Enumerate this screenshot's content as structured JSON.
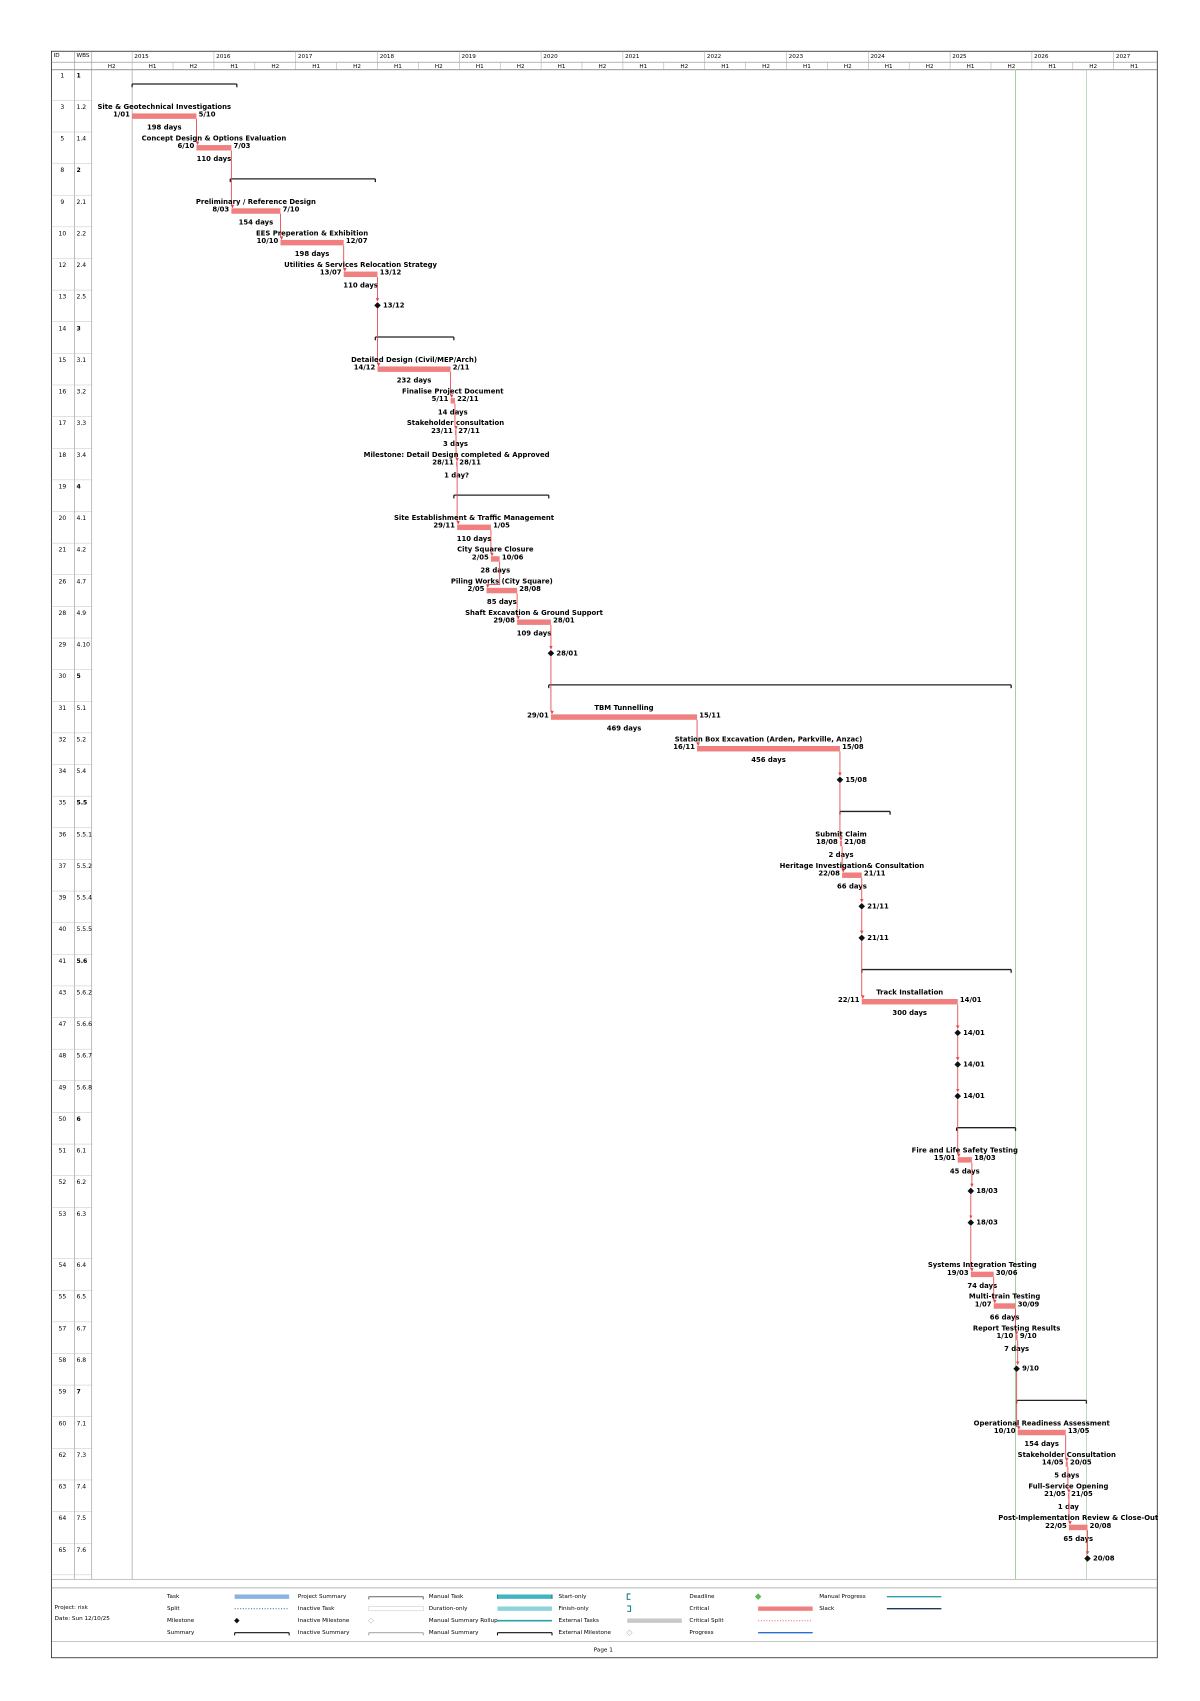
{
  "header": {
    "columns": [
      "ID",
      "WBS"
    ],
    "years": [
      "2015",
      "2016",
      "2017",
      "2018",
      "2019",
      "2020",
      "2021",
      "2022",
      "2023",
      "2024",
      "2025",
      "2026",
      "2027"
    ],
    "halves": [
      "H2",
      "H1",
      "H2",
      "H1",
      "H2",
      "H1",
      "H2",
      "H1",
      "H2",
      "H1",
      "H2",
      "H1",
      "H2",
      "H1",
      "H2",
      "H1",
      "H2",
      "H1",
      "H2",
      "H1",
      "H2",
      "H1",
      "H2",
      "H1",
      "H2",
      "H1"
    ]
  },
  "rows": [
    {
      "id": "1",
      "wbs": "1"
    },
    {
      "id": "3",
      "wbs": "1.2",
      "name": "Site & Geotechnical Investigations",
      "start": "1/01",
      "finish": "5/10",
      "duration": "198 days"
    },
    {
      "id": "5",
      "wbs": "1.4",
      "name": "Concept Design & Options Evaluation",
      "start": "6/10",
      "finish": "7/03",
      "duration": "110 days"
    },
    {
      "id": "8",
      "wbs": "2"
    },
    {
      "id": "9",
      "wbs": "2.1",
      "name": "Preliminary / Reference Design",
      "start": "8/03",
      "finish": "7/10",
      "duration": "154 days"
    },
    {
      "id": "10",
      "wbs": "2.2",
      "name": "EES Preperation & Exhibition",
      "start": "10/10",
      "finish": "12/07",
      "duration": "198 days"
    },
    {
      "id": "12",
      "wbs": "2.4",
      "name": "Utilities & Services Relocation Strategy",
      "start": "13/07",
      "finish": "13/12",
      "duration": "110 days"
    },
    {
      "id": "13",
      "wbs": "2.5",
      "milestone": "13/12"
    },
    {
      "id": "14",
      "wbs": "3"
    },
    {
      "id": "15",
      "wbs": "3.1",
      "name": "Detailed Design (Civil/MEP/Arch)",
      "start": "14/12",
      "finish": "2/11",
      "duration": "232 days"
    },
    {
      "id": "16",
      "wbs": "3.2",
      "name": "Finalise Project Document",
      "start": "5/11",
      "finish": "22/11",
      "duration": "14 days"
    },
    {
      "id": "17",
      "wbs": "3.3",
      "name": "Stakeholder consultation",
      "start": "23/11",
      "finish": "27/11",
      "duration": "3 days"
    },
    {
      "id": "18",
      "wbs": "3.4",
      "name": "Milestone: Detail Design completed & Approved",
      "start": "28/11",
      "finish": "28/11",
      "duration": "1 day?"
    },
    {
      "id": "19",
      "wbs": "4"
    },
    {
      "id": "20",
      "wbs": "4.1",
      "name": "Site Establishment & Traffic Management",
      "start": "29/11",
      "finish": "1/05",
      "duration": "110 days"
    },
    {
      "id": "21",
      "wbs": "4.2",
      "name": "City Square Closure",
      "start": "2/05",
      "finish": "10/06",
      "duration": "28 days"
    },
    {
      "id": "26",
      "wbs": "4.7",
      "name": "Piling Works (City Square)",
      "start": "2/05",
      "finish": "28/08",
      "duration": "85 days"
    },
    {
      "id": "28",
      "wbs": "4.9",
      "name": "Shaft Excavation & Ground Support",
      "start": "29/08",
      "finish": "28/01",
      "duration": "109 days"
    },
    {
      "id": "29",
      "wbs": "4.10",
      "milestone": "28/01"
    },
    {
      "id": "30",
      "wbs": "5"
    },
    {
      "id": "31",
      "wbs": "5.1",
      "name": "TBM Tunnelling",
      "start": "29/01",
      "finish": "15/11",
      "duration": "469 days"
    },
    {
      "id": "32",
      "wbs": "5.2",
      "name": "Station Box Excavation (Arden, Parkville, Anzac)",
      "start": "16/11",
      "finish": "15/08",
      "duration": "456 days"
    },
    {
      "id": "34",
      "wbs": "5.4",
      "milestone": "15/08"
    },
    {
      "id": "35",
      "wbs": "5.5"
    },
    {
      "id": "36",
      "wbs": "5.5.1",
      "name": "Submit Claim",
      "start": "18/08",
      "finish": "21/08",
      "duration": "2 days"
    },
    {
      "id": "37",
      "wbs": "5.5.2",
      "name": "Heritage Investigation& Consultation",
      "start": "22/08",
      "finish": "21/11",
      "duration": "66 days"
    },
    {
      "id": "39",
      "wbs": "5.5.4",
      "milestone": "21/11"
    },
    {
      "id": "40",
      "wbs": "5.5.5",
      "milestone": "21/11"
    },
    {
      "id": "41",
      "wbs": "5.6"
    },
    {
      "id": "43",
      "wbs": "5.6.2",
      "name": "Track Installation",
      "start": "22/11",
      "finish": "14/01",
      "duration": "300 days"
    },
    {
      "id": "47",
      "wbs": "5.6.6",
      "milestone": "14/01"
    },
    {
      "id": "48",
      "wbs": "5.6.7",
      "milestone": "14/01"
    },
    {
      "id": "49",
      "wbs": "5.6.8",
      "milestone": "14/01"
    },
    {
      "id": "50",
      "wbs": "6"
    },
    {
      "id": "51",
      "wbs": "6.1",
      "name": "Fire and Life Safety Testing",
      "start": "15/01",
      "finish": "18/03",
      "duration": "45 days"
    },
    {
      "id": "52",
      "wbs": "6.2",
      "milestone": "18/03"
    },
    {
      "id": "53",
      "wbs": "6.3",
      "milestone": "18/03"
    },
    {
      "id": "54",
      "wbs": "6.4",
      "name": "Systems Integration Testing",
      "start": "19/03",
      "finish": "30/06",
      "duration": "74 days"
    },
    {
      "id": "55",
      "wbs": "6.5",
      "name": "Multi-train Testing",
      "start": "1/07",
      "finish": "30/09",
      "duration": "66 days"
    },
    {
      "id": "57",
      "wbs": "6.7",
      "name": "Report Testing Results",
      "start": "1/10",
      "finish": "9/10",
      "duration": "7 days"
    },
    {
      "id": "58",
      "wbs": "6.8",
      "milestone": "9/10"
    },
    {
      "id": "59",
      "wbs": "7"
    },
    {
      "id": "60",
      "wbs": "7.1",
      "name": "Operational Readiness Assessment",
      "start": "10/10",
      "finish": "13/05",
      "duration": "154 days"
    },
    {
      "id": "62",
      "wbs": "7.3",
      "name": "Stakeholder Consultation",
      "start": "14/05",
      "finish": "20/05",
      "duration": "5 days"
    },
    {
      "id": "63",
      "wbs": "7.4",
      "name": "Full-Service Opening",
      "start": "21/05",
      "finish": "21/05",
      "duration": "1 day"
    },
    {
      "id": "64",
      "wbs": "7.5",
      "name": "Post-Implementation Review & Close-Out",
      "start": "22/05",
      "finish": "20/08",
      "duration": "65 days"
    },
    {
      "id": "65",
      "wbs": "7.6",
      "milestone": "20/08"
    }
  ],
  "legend": [
    [
      "Task",
      "Split",
      "Milestone",
      "Summary"
    ],
    [
      "Project Summary",
      "Inactive Task",
      "Inactive Milestone",
      "Inactive Summary"
    ],
    [
      "Manual Task",
      "Duration-only",
      "Manual Summary Rollup",
      "Manual Summary"
    ],
    [
      "Start-only",
      "Finish-only",
      "External Tasks",
      "External Milestone"
    ],
    [
      "Deadline",
      "Critical",
      "Critical Split",
      "Progress"
    ],
    [
      "Manual Progress",
      "Slack"
    ]
  ],
  "footer": {
    "project": "Project: risk",
    "date": "Date: Sun 12/10/25",
    "page": "Page 1"
  }
}
